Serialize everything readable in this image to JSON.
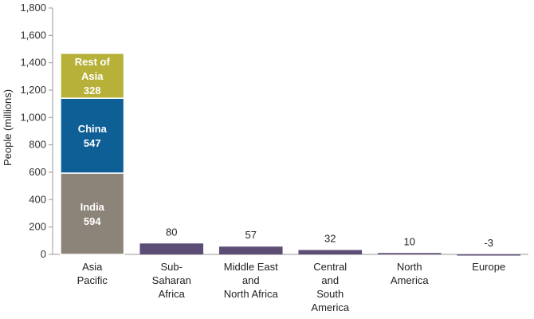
{
  "chart_data": {
    "type": "bar",
    "ylabel": "People (millions)",
    "ylim": [
      0,
      1800
    ],
    "yticks": [
      0,
      200,
      400,
      600,
      800,
      1000,
      1200,
      1400,
      1600,
      1800
    ],
    "ytick_labels": [
      "0",
      "200",
      "400",
      "600",
      "800",
      "1,000",
      "1,200",
      "1,400",
      "1,600",
      "1,800"
    ],
    "grid": false,
    "stacked_bar": {
      "category_lines": [
        "Asia",
        "Pacific"
      ],
      "segments": [
        {
          "label": "India",
          "value": 594,
          "value_label": "594",
          "color": "#8c8479"
        },
        {
          "label": "China",
          "value": 547,
          "value_label": "547",
          "color": "#0e5f96"
        },
        {
          "label_lines": [
            "Rest of",
            "Asia"
          ],
          "value": 328,
          "value_label": "328",
          "color": "#b7b13a"
        }
      ]
    },
    "bars": [
      {
        "category_lines": [
          "Sub-",
          "Saharan",
          "Africa"
        ],
        "value": 80,
        "value_label": "80",
        "color": "#5c4d75"
      },
      {
        "category_lines": [
          "Middle East",
          "and",
          "North Africa"
        ],
        "value": 57,
        "value_label": "57",
        "color": "#5c4d75"
      },
      {
        "category_lines": [
          "Central",
          "and",
          "South",
          "America"
        ],
        "value": 32,
        "value_label": "32",
        "color": "#5c4d75"
      },
      {
        "category_lines": [
          "North",
          "America"
        ],
        "value": 10,
        "value_label": "10",
        "color": "#5c4d75"
      },
      {
        "category_lines": [
          "Europe"
        ],
        "value": -3,
        "value_label": "-3",
        "color": "#5c4d75"
      }
    ]
  }
}
